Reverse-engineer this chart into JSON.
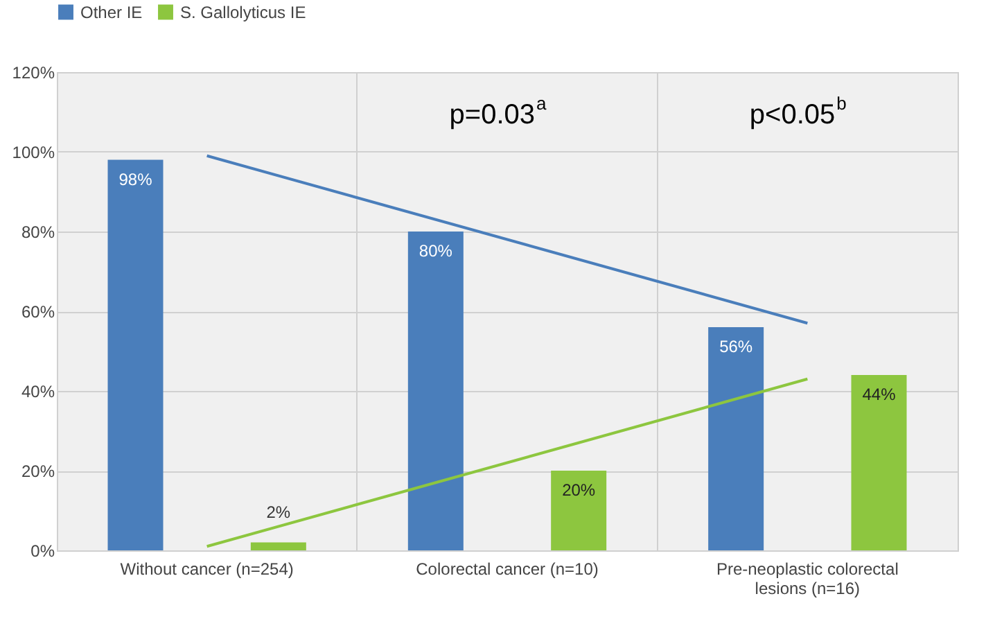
{
  "chart_data": {
    "type": "bar",
    "categories": [
      "Without cancer (n=254)",
      "Colorectal cancer (n=10)",
      "Pre-neoplastic colorectal lesions (n=16)"
    ],
    "series": [
      {
        "name": "Other IE",
        "color": "#4a7ebb",
        "values": [
          98,
          80,
          56
        ],
        "value_labels": [
          "98%",
          "80%",
          "56%"
        ]
      },
      {
        "name": "S. Gallolyticus IE",
        "color": "#8dc63f",
        "values": [
          2,
          20,
          44
        ],
        "value_labels": [
          "2%",
          "20%",
          "44%"
        ]
      },
      {
        "type": "line",
        "color": "#4a7ebb",
        "x": [
          "Without cancer (n=254)",
          "Pre-neoplastic colorectal lesions (n=16)"
        ],
        "values": [
          99,
          57
        ]
      },
      {
        "type": "line",
        "color": "#8dc63f",
        "x": [
          "Without cancer (n=254)",
          "Pre-neoplastic colorectal lesions (n=16)"
        ],
        "values": [
          1,
          43
        ]
      }
    ],
    "ylim": [
      0,
      120
    ],
    "yticks": [
      {
        "value": 0,
        "label": "0%"
      },
      {
        "value": 20,
        "label": "20%"
      },
      {
        "value": 40,
        "label": "40%"
      },
      {
        "value": 60,
        "label": "60%"
      },
      {
        "value": 80,
        "label": "80%"
      },
      {
        "value": 100,
        "label": "100%"
      },
      {
        "value": 120,
        "label": "120%"
      }
    ],
    "annotations": [
      "p=0.03$^{a}$",
      "p<0.05$^{b}$"
    ],
    "grid": true,
    "legend": "top left"
  }
}
